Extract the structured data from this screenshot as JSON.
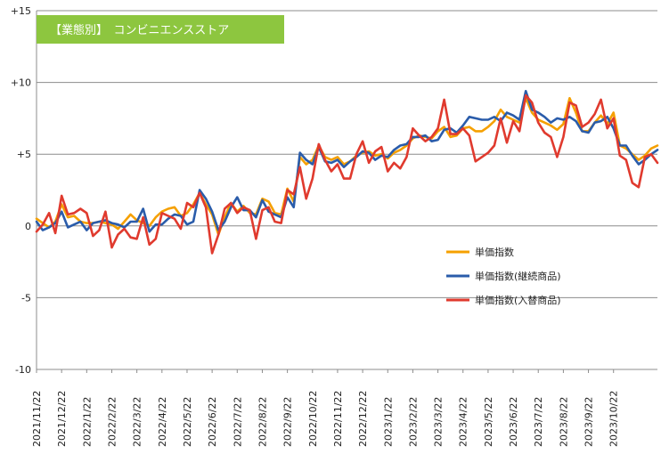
{
  "chart_data": {
    "type": "line",
    "title": "【業態別】　コンビニエンスストア",
    "title_bg_color": "#8DC63F",
    "ylim": [
      -10,
      15
    ],
    "yticks": [
      {
        "value": 15,
        "label": "+15"
      },
      {
        "value": 10,
        "label": "+10"
      },
      {
        "value": 5,
        "label": "+5"
      },
      {
        "value": 0,
        "label": "0"
      },
      {
        "value": -5,
        "label": "-5"
      },
      {
        "value": -10,
        "label": "-10"
      }
    ],
    "xticks": [
      {
        "index": 0,
        "label": "2021/11/22"
      },
      {
        "index": 4,
        "label": "2021/12/22"
      },
      {
        "index": 8,
        "label": "2022/1/22"
      },
      {
        "index": 12,
        "label": "2022/2/22"
      },
      {
        "index": 16,
        "label": "2022/3/22"
      },
      {
        "index": 20,
        "label": "2022/4/22"
      },
      {
        "index": 24,
        "label": "2022/5/22"
      },
      {
        "index": 28,
        "label": "2022/6/22"
      },
      {
        "index": 32,
        "label": "2022/7/22"
      },
      {
        "index": 36,
        "label": "2022/8/22"
      },
      {
        "index": 40,
        "label": "2022/9/22"
      },
      {
        "index": 44,
        "label": "2022/10/22"
      },
      {
        "index": 48,
        "label": "2022/11/22"
      },
      {
        "index": 52,
        "label": "2022/12/22"
      },
      {
        "index": 56,
        "label": "2023/1/22"
      },
      {
        "index": 60,
        "label": "2023/2/22"
      },
      {
        "index": 64,
        "label": "2023/3/22"
      },
      {
        "index": 68,
        "label": "2023/4/22"
      },
      {
        "index": 72,
        "label": "2023/5/22"
      },
      {
        "index": 76,
        "label": "2023/6/22"
      },
      {
        "index": 80,
        "label": "2023/7/22"
      },
      {
        "index": 84,
        "label": "2023/8/22"
      },
      {
        "index": 88,
        "label": "2023/9/22"
      },
      {
        "index": 92,
        "label": "2023/10/22"
      }
    ],
    "legend_position": "right-center",
    "grid": "horizontal",
    "series": [
      {
        "name": "単価指数",
        "color": "#F5A000",
        "values": [
          0.5,
          0.2,
          -0.1,
          0.3,
          1.5,
          0.6,
          0.7,
          0.3,
          0.2,
          0.2,
          0.3,
          0.2,
          0.1,
          -0.2,
          0.3,
          0.8,
          0.4,
          0.2,
          0.0,
          0.6,
          1.0,
          1.2,
          1.3,
          0.7,
          0.9,
          1.5,
          2.3,
          1.5,
          0.8,
          -0.6,
          0.6,
          1.6,
          1.0,
          1.4,
          0.9,
          0.8,
          1.9,
          1.7,
          0.9,
          0.8,
          2.6,
          1.7,
          4.8,
          4.3,
          4.6,
          5.6,
          4.8,
          4.6,
          4.8,
          4.3,
          4.5,
          4.9,
          5.1,
          5.2,
          4.9,
          5.0,
          4.7,
          5.1,
          5.3,
          5.6,
          6.1,
          6.3,
          6.2,
          6.1,
          6.6,
          6.9,
          6.2,
          6.3,
          6.8,
          6.9,
          6.6,
          6.6,
          6.9,
          7.3,
          8.1,
          7.6,
          7.4,
          7.2,
          8.9,
          7.9,
          7.4,
          7.2,
          7.0,
          6.7,
          7.1,
          8.9,
          7.9,
          6.6,
          6.6,
          7.2,
          7.7,
          7.1,
          7.9,
          5.6,
          5.4,
          5.0,
          4.6,
          4.9,
          5.4,
          5.6
        ]
      },
      {
        "name": "単価指数(継続商品)",
        "color": "#2A5CAA",
        "values": [
          0.3,
          -0.3,
          -0.1,
          0.2,
          1.0,
          -0.1,
          0.1,
          0.3,
          -0.3,
          0.2,
          0.3,
          0.4,
          0.2,
          0.1,
          -0.1,
          0.3,
          0.3,
          1.2,
          -0.4,
          0.1,
          0.1,
          0.5,
          0.8,
          0.7,
          0.1,
          0.3,
          2.5,
          1.9,
          1.0,
          -0.3,
          0.3,
          1.3,
          2.0,
          1.1,
          1.1,
          0.6,
          1.8,
          1.0,
          0.8,
          0.6,
          2.0,
          1.3,
          5.1,
          4.6,
          4.3,
          5.5,
          4.5,
          4.4,
          4.6,
          4.1,
          4.5,
          4.8,
          5.2,
          5.1,
          4.6,
          4.9,
          4.8,
          5.3,
          5.6,
          5.7,
          6.2,
          6.2,
          6.3,
          5.9,
          6.0,
          6.7,
          6.8,
          6.5,
          7.0,
          7.6,
          7.5,
          7.4,
          7.4,
          7.6,
          7.3,
          7.9,
          7.7,
          7.4,
          9.4,
          8.1,
          7.9,
          7.6,
          7.2,
          7.5,
          7.4,
          7.6,
          7.3,
          6.6,
          6.5,
          7.2,
          7.3,
          7.6,
          6.8,
          5.6,
          5.6,
          4.9,
          4.3,
          4.6,
          5.0,
          5.3
        ]
      },
      {
        "name": "単価指数(入替商品)",
        "color": "#E03A2E",
        "values": [
          -0.4,
          0.1,
          0.9,
          -0.5,
          2.1,
          0.8,
          0.9,
          1.2,
          0.9,
          -0.7,
          -0.3,
          1.0,
          -1.5,
          -0.6,
          -0.2,
          -0.8,
          -0.9,
          0.6,
          -1.3,
          -0.9,
          0.9,
          0.7,
          0.5,
          -0.2,
          1.6,
          1.3,
          2.3,
          1.3,
          -1.9,
          -0.6,
          1.2,
          1.6,
          0.9,
          1.3,
          1.1,
          -0.9,
          1.1,
          1.3,
          0.3,
          0.2,
          2.5,
          2.2,
          4.1,
          1.9,
          3.3,
          5.7,
          4.6,
          3.8,
          4.3,
          3.3,
          3.3,
          5.0,
          5.9,
          4.4,
          5.2,
          5.5,
          3.8,
          4.4,
          4.0,
          4.8,
          6.8,
          6.3,
          5.9,
          6.2,
          6.8,
          8.8,
          6.4,
          6.4,
          6.8,
          6.3,
          4.5,
          4.8,
          5.1,
          5.6,
          7.5,
          5.8,
          7.3,
          6.6,
          9.1,
          8.6,
          7.2,
          6.5,
          6.2,
          4.8,
          6.2,
          8.6,
          8.4,
          6.9,
          7.2,
          7.8,
          8.8,
          6.8,
          7.5,
          4.9,
          4.6,
          3.0,
          2.7,
          4.8,
          5.0,
          4.4
        ]
      }
    ]
  }
}
